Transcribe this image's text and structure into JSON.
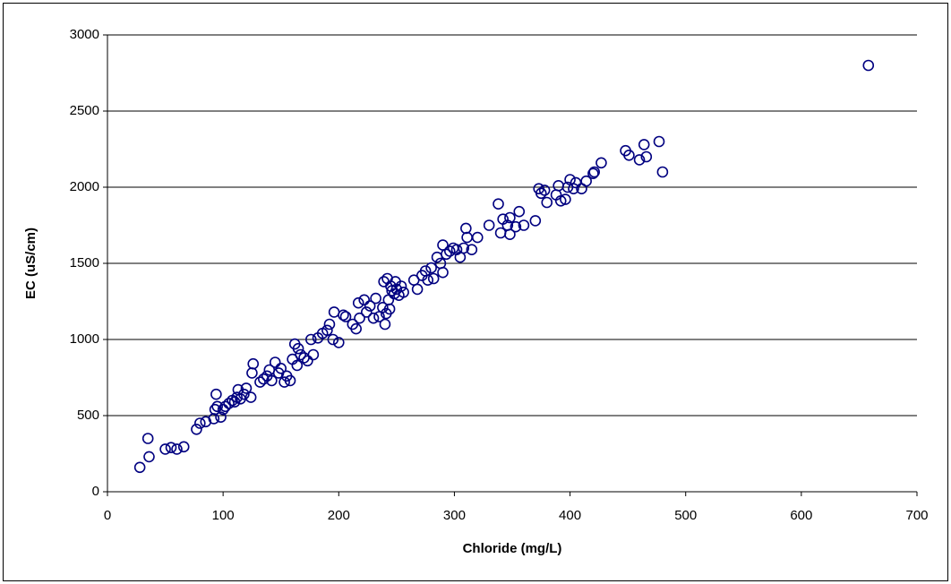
{
  "chart_data": {
    "type": "scatter",
    "x_label": "Chloride (mg/L)",
    "y_label": "EC (uS/cm)",
    "color": "#000080",
    "xlim": [
      0,
      700
    ],
    "xticks": [
      0,
      100,
      200,
      300,
      400,
      500,
      600,
      700
    ],
    "ylim": [
      0,
      3000
    ],
    "yticks": [
      0,
      500,
      1000,
      1500,
      2000,
      2500,
      3000
    ],
    "grid": true,
    "x": [
      28,
      36,
      35,
      50,
      55,
      60,
      66,
      77,
      80,
      85,
      92,
      93,
      94,
      95,
      98,
      100,
      102,
      105,
      108,
      110,
      112,
      113,
      115,
      118,
      120,
      124,
      125,
      126,
      132,
      135,
      138,
      140,
      142,
      145,
      148,
      150,
      153,
      155,
      158,
      160,
      162,
      164,
      165,
      167,
      170,
      173,
      176,
      178,
      182,
      186,
      190,
      192,
      195,
      196,
      200,
      204,
      206,
      212,
      215,
      217,
      218,
      222,
      224,
      227,
      230,
      232,
      235,
      238,
      239,
      240,
      241,
      242,
      243,
      244,
      245,
      246,
      248,
      249,
      250,
      252,
      254,
      256,
      265,
      268,
      272,
      275,
      277,
      280,
      282,
      285,
      288,
      290,
      290,
      293,
      296,
      299,
      302,
      305,
      308,
      310,
      311,
      315,
      320,
      330,
      338,
      340,
      342,
      346,
      348,
      348,
      353,
      356,
      360,
      370,
      373,
      375,
      378,
      380,
      388,
      390,
      392,
      396,
      398,
      400,
      403,
      405,
      410,
      414,
      420,
      421,
      427,
      448,
      451,
      460,
      464,
      466,
      477,
      480,
      658
    ],
    "values": [
      160,
      230,
      350,
      280,
      290,
      280,
      295,
      410,
      450,
      460,
      480,
      540,
      640,
      560,
      490,
      540,
      560,
      580,
      600,
      590,
      620,
      670,
      610,
      640,
      680,
      620,
      780,
      840,
      720,
      740,
      760,
      800,
      730,
      850,
      780,
      810,
      720,
      760,
      730,
      870,
      970,
      830,
      940,
      900,
      880,
      860,
      1000,
      900,
      1010,
      1040,
      1060,
      1100,
      1000,
      1180,
      980,
      1160,
      1150,
      1100,
      1070,
      1240,
      1140,
      1260,
      1180,
      1220,
      1140,
      1270,
      1150,
      1210,
      1380,
      1100,
      1170,
      1400,
      1260,
      1200,
      1350,
      1320,
      1300,
      1380,
      1330,
      1290,
      1350,
      1310,
      1390,
      1330,
      1420,
      1450,
      1390,
      1470,
      1400,
      1540,
      1500,
      1620,
      1440,
      1560,
      1580,
      1600,
      1590,
      1540,
      1600,
      1730,
      1670,
      1590,
      1670,
      1750,
      1890,
      1700,
      1790,
      1750,
      1800,
      1690,
      1740,
      1840,
      1750,
      1780,
      1990,
      1960,
      1980,
      1900,
      1950,
      2010,
      1910,
      1920,
      2000,
      2050,
      1990,
      2030,
      1990,
      2040,
      2090,
      2100,
      2160,
      2240,
      2210,
      2180,
      2280,
      2200,
      2300,
      2100,
      2800
    ]
  }
}
